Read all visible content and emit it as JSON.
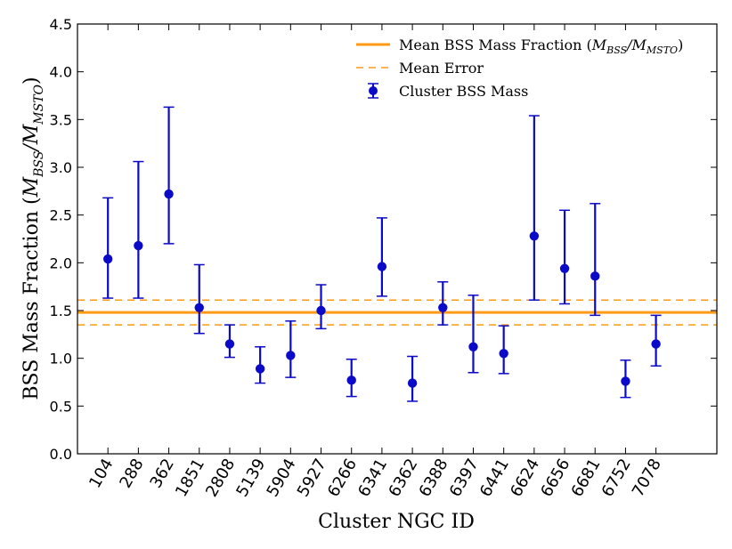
{
  "chart_data": {
    "type": "scatter",
    "title": "",
    "xlabel": "Cluster NGC ID",
    "ylabel_text": "BSS Mass Fraction (",
    "ylabel_math": {
      "main": "M",
      "sub1": "BSS",
      "sep": "/M",
      "sub2": "MSTO",
      "close": ")"
    },
    "ylim": [
      0.0,
      4.5
    ],
    "yticks": [
      "0.0",
      "0.5",
      "1.0",
      "1.5",
      "2.0",
      "2.5",
      "3.0",
      "3.5",
      "4.0",
      "4.5"
    ],
    "ytick_values": [
      0.0,
      0.5,
      1.0,
      1.5,
      2.0,
      2.5,
      3.0,
      3.5,
      4.0,
      4.5
    ],
    "xlim": [
      0,
      21
    ],
    "categories": [
      "104",
      "288",
      "362",
      "1851",
      "2808",
      "5139",
      "5904",
      "5927",
      "6266",
      "6341",
      "6362",
      "6388",
      "6397",
      "6441",
      "6624",
      "6656",
      "6681",
      "6752",
      "7078"
    ],
    "series": [
      {
        "name": "Cluster BSS Mass",
        "values": [
          2.04,
          2.18,
          2.72,
          1.53,
          1.15,
          0.89,
          1.03,
          1.5,
          0.77,
          1.96,
          0.74,
          1.53,
          1.12,
          1.05,
          2.28,
          1.94,
          1.86,
          0.76,
          1.15
        ],
        "err_low": [
          1.63,
          1.63,
          2.2,
          1.26,
          1.01,
          0.74,
          0.8,
          1.31,
          0.6,
          1.65,
          0.55,
          1.35,
          0.85,
          0.84,
          1.61,
          1.57,
          1.45,
          0.59,
          0.92
        ],
        "err_high": [
          2.68,
          3.06,
          3.63,
          1.98,
          1.35,
          1.12,
          1.39,
          1.77,
          0.99,
          2.47,
          1.02,
          1.8,
          1.66,
          1.34,
          3.54,
          2.55,
          2.62,
          0.98,
          1.45
        ],
        "color": "#0a0ac8"
      }
    ],
    "mean": {
      "name": "Mean BSS Mass Fraction",
      "value": 1.48,
      "color": "#ff9a14"
    },
    "mean_error": {
      "name": "Mean Error",
      "low": 1.35,
      "high": 1.61,
      "color": "#ff9a14"
    },
    "legend": {
      "placement": "top-right",
      "entries": [
        {
          "label": "Mean BSS Mass Fraction ",
          "math": {
            "open": "(",
            "main": "M",
            "sub1": "BSS",
            "sep": "/M",
            "sub2": "MSTO",
            "close": ")"
          }
        },
        {
          "label": "Mean Error"
        },
        {
          "label": "Cluster BSS Mass"
        }
      ]
    }
  }
}
